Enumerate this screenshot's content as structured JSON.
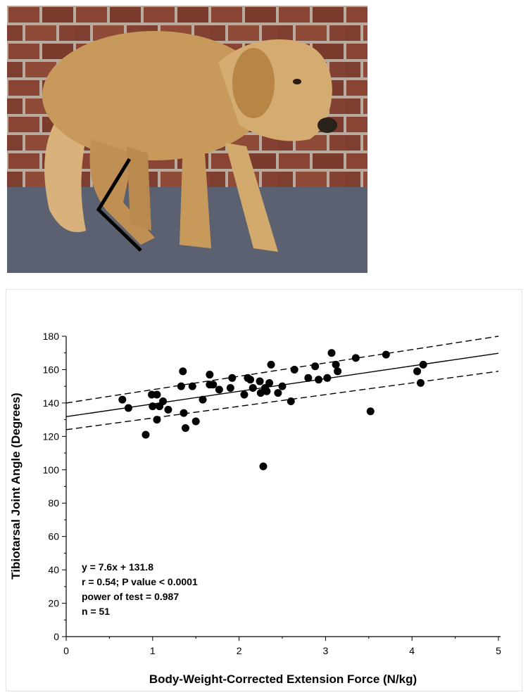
{
  "photo": {
    "subject": "dog-standing-photo",
    "overlay": "tibiotarsal-joint-angle-marker",
    "colors": {
      "brick": "#8a4433",
      "mortar": "#b7aba0",
      "pavement": "#5b6170",
      "fur": "#c79a5c",
      "line": "#000000"
    }
  },
  "chart_data": {
    "type": "scatter",
    "xlabel": "Body-Weight-Corrected Extension Force (N/kg)",
    "ylabel": "Tibiotarsal Joint Angle (Degrees)",
    "xlim": [
      0,
      5
    ],
    "ylim": [
      0,
      180
    ],
    "xticks": [
      "0",
      "1",
      "2",
      "3",
      "4",
      "5"
    ],
    "yticks": [
      "0",
      "20",
      "40",
      "60",
      "80",
      "100",
      "120",
      "140",
      "160",
      "180"
    ],
    "points": [
      [
        0.65,
        142
      ],
      [
        0.72,
        137
      ],
      [
        0.92,
        121
      ],
      [
        0.99,
        145
      ],
      [
        1.0,
        138
      ],
      [
        1.05,
        130
      ],
      [
        1.05,
        145
      ],
      [
        1.08,
        138
      ],
      [
        1.12,
        141
      ],
      [
        1.18,
        136
      ],
      [
        1.33,
        150
      ],
      [
        1.35,
        159
      ],
      [
        1.36,
        134
      ],
      [
        1.38,
        125
      ],
      [
        1.46,
        150
      ],
      [
        1.5,
        129
      ],
      [
        1.58,
        142
      ],
      [
        1.66,
        157
      ],
      [
        1.66,
        151
      ],
      [
        1.7,
        151
      ],
      [
        1.77,
        148
      ],
      [
        1.9,
        149
      ],
      [
        1.92,
        155
      ],
      [
        2.06,
        145
      ],
      [
        2.1,
        155
      ],
      [
        2.13,
        154
      ],
      [
        2.16,
        149
      ],
      [
        2.24,
        153
      ],
      [
        2.25,
        146
      ],
      [
        2.28,
        102
      ],
      [
        2.3,
        149
      ],
      [
        2.32,
        147
      ],
      [
        2.35,
        152
      ],
      [
        2.37,
        163
      ],
      [
        2.45,
        146
      ],
      [
        2.5,
        150
      ],
      [
        2.6,
        141
      ],
      [
        2.64,
        160
      ],
      [
        2.8,
        155
      ],
      [
        2.88,
        162
      ],
      [
        2.92,
        154
      ],
      [
        3.02,
        155
      ],
      [
        3.07,
        170
      ],
      [
        3.12,
        163
      ],
      [
        3.14,
        159
      ],
      [
        3.35,
        167
      ],
      [
        3.52,
        135
      ],
      [
        3.7,
        169
      ],
      [
        4.06,
        159
      ],
      [
        4.1,
        152
      ],
      [
        4.13,
        163
      ]
    ],
    "fit_line": {
      "slope": 7.6,
      "intercept": 131.8
    },
    "confidence_band": {
      "upper": [
        [
          0,
          140
        ],
        [
          5,
          180
        ]
      ],
      "lower": [
        [
          0,
          124
        ],
        [
          5,
          159
        ]
      ]
    },
    "annotations": [
      "y = 7.6x + 131.8",
      "r = 0.54; P value < 0.0001",
      "power of test = 0.987",
      "n = 51"
    ],
    "colors": {
      "points": "#000000",
      "line": "#000000",
      "panel_border": "#e3e3e3"
    }
  }
}
